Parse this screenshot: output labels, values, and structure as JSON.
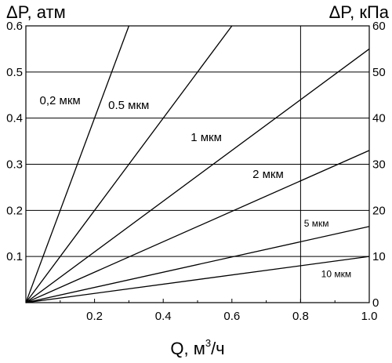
{
  "chart_data": {
    "type": "line",
    "left_axis_title": "ΔP, атм",
    "right_axis_title": "ΔP, кПа",
    "xlabel_main": "Q, м",
    "xlabel_sup": "3",
    "xlabel_tail": "/ч",
    "xlim": [
      0,
      1.0
    ],
    "ylim_left": [
      0,
      0.6
    ],
    "ylim_right": [
      0,
      60
    ],
    "x_ticks": [
      "0.2",
      "0.4",
      "0.6",
      "0.8",
      "1.0"
    ],
    "y_left_ticks": [
      "0.1",
      "0.2",
      "0.3",
      "0.4",
      "0.5",
      "0.6"
    ],
    "y_right_ticks": [
      "0",
      "10",
      "20",
      "30",
      "40",
      "50",
      "60"
    ],
    "grid": "horizontal lines at left-axis ticks, vertical line at x = 0.8",
    "vertical_gridline_x": 0.8,
    "series": [
      {
        "name": "0,2 мкм",
        "x": [
          0,
          0.3
        ],
        "y": [
          0,
          0.6
        ]
      },
      {
        "name": "0.5 мкм",
        "x": [
          0,
          0.6
        ],
        "y": [
          0,
          0.6
        ]
      },
      {
        "name": "1 мкм",
        "x": [
          0,
          1.0
        ],
        "y": [
          0,
          0.55
        ]
      },
      {
        "name": "2 мкм",
        "x": [
          0,
          1.0
        ],
        "y": [
          0,
          0.33
        ]
      },
      {
        "name": "5 мкм",
        "x": [
          0,
          1.0
        ],
        "y": [
          0,
          0.165
        ]
      },
      {
        "name": "10 мкм",
        "x": [
          0,
          1.0
        ],
        "y": [
          0,
          0.1
        ]
      }
    ],
    "series_labels": [
      {
        "text": "0,2 мкм",
        "at": [
          0.04,
          0.43
        ],
        "size": "normal"
      },
      {
        "text": "0.5 мкм",
        "at": [
          0.24,
          0.42
        ],
        "size": "normal"
      },
      {
        "text": "1 мкм",
        "at": [
          0.48,
          0.35
        ],
        "size": "normal"
      },
      {
        "text": "2 мкм",
        "at": [
          0.66,
          0.27
        ],
        "size": "normal"
      },
      {
        "text": "5 мкм",
        "at": [
          0.81,
          0.165
        ],
        "size": "small"
      },
      {
        "text": "10 мкм",
        "at": [
          0.86,
          0.055
        ],
        "size": "small"
      }
    ]
  }
}
